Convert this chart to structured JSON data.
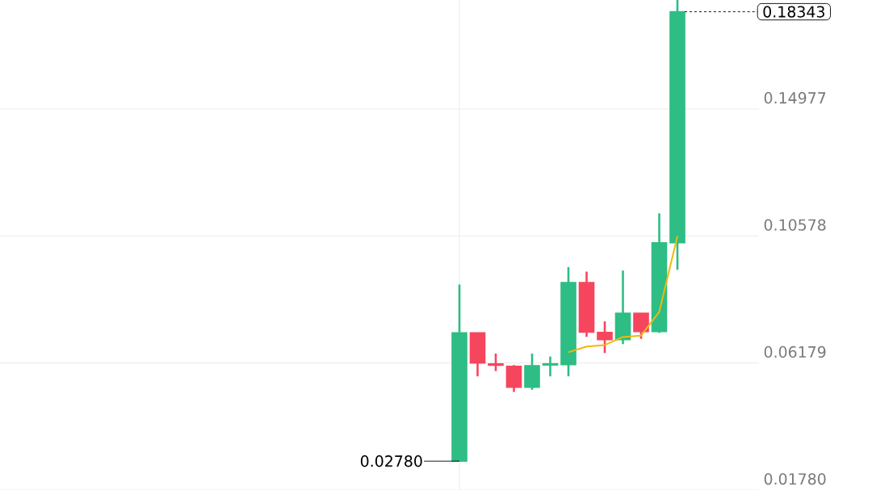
{
  "chart_data": {
    "type": "candlestick",
    "categories": [
      null,
      null,
      null,
      null,
      null,
      null,
      null,
      null,
      null,
      null,
      null,
      null,
      null
    ],
    "ohlc": [
      [
        0.0278,
        0.08896,
        0.0278,
        0.07222
      ],
      [
        0.07222,
        0.07222,
        0.05716,
        0.06179
      ],
      [
        0.0615,
        0.06505,
        0.059,
        0.061
      ],
      [
        0.0606,
        0.06107,
        0.05175,
        0.05342
      ],
      [
        0.05342,
        0.06505,
        0.0525,
        0.06087
      ],
      [
        0.0611,
        0.06402,
        0.05716,
        0.0615
      ],
      [
        0.06123,
        0.09499,
        0.05716,
        0.08961
      ],
      [
        0.08961,
        0.09343,
        0.07083,
        0.0725
      ],
      [
        0.07239,
        0.07621,
        0.06525,
        0.06988
      ],
      [
        0.06988,
        0.09379,
        0.06832,
        0.079
      ],
      [
        0.079,
        0.079,
        0.07016,
        0.07267
      ],
      [
        0.07267,
        0.1136,
        0.07222,
        0.1034
      ],
      [
        0.1034,
        0.1875,
        0.09407,
        0.18343
      ]
    ],
    "colors": [
      "#2ebd85",
      "#f6465d",
      "#f6465d",
      "#f6465d",
      "#2ebd85",
      "#2ebd85",
      "#2ebd85",
      "#f6465d",
      "#f6465d",
      "#2ebd85",
      "#f6465d",
      "#2ebd85",
      "#2ebd85"
    ],
    "series": [
      {
        "type": "line",
        "color": "#f0b90b",
        "values": [
          null,
          null,
          null,
          null,
          null,
          null,
          0.0655,
          0.0675,
          0.068,
          0.0708,
          0.0713,
          0.0795,
          0.1057
        ]
      }
    ],
    "ylim": [
      0.0178,
      0.1875
    ],
    "yticks": [
      {
        "value": 0.0178,
        "label": "0.01780"
      },
      0.06179,
      0.10578,
      0.14977
    ],
    "grid": "y",
    "tick_labels": "y",
    "annotations": [
      "0.02780",
      "0.18343"
    ]
  }
}
